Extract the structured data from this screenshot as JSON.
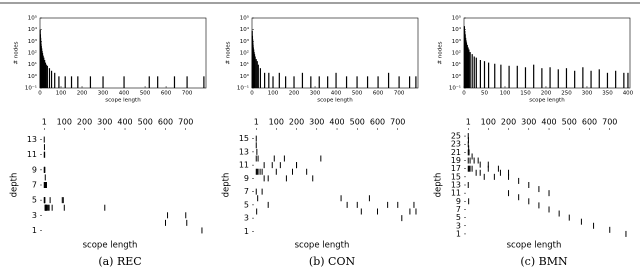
{
  "chart_data": [
    {
      "type": "bar",
      "ylog": true,
      "xlabel": "scope length",
      "ylabel": "# nodes",
      "color": "#000000",
      "x": [
        1,
        2,
        3,
        4,
        5,
        6,
        8,
        10,
        12,
        15,
        18,
        22,
        26,
        30,
        35,
        45,
        55,
        70,
        90,
        120,
        150,
        180,
        240,
        300,
        400,
        520,
        560,
        640,
        700,
        780
      ],
      "values": [
        10000,
        4000,
        2000,
        1000,
        600,
        400,
        250,
        150,
        100,
        60,
        40,
        25,
        15,
        10,
        8,
        5,
        3,
        2,
        1,
        1,
        1,
        1,
        1,
        1,
        1,
        1,
        1,
        1,
        1,
        1
      ],
      "xlim": [
        0,
        790
      ],
      "xticks": [
        0,
        100,
        200,
        300,
        400,
        500,
        600,
        700
      ],
      "ylim": [
        0.1,
        100000
      ],
      "yticks": [
        {
          "value": 0.1,
          "label": "10⁻¹"
        },
        {
          "value": 1,
          "label": "10⁰"
        },
        {
          "value": 10,
          "label": "10¹"
        },
        {
          "value": 100,
          "label": "10²"
        },
        {
          "value": 1000,
          "label": "10³"
        },
        {
          "value": 10000,
          "label": "10⁴"
        },
        {
          "value": 100000,
          "label": "10⁵"
        }
      ]
    },
    {
      "type": "bar",
      "ylog": true,
      "xlabel": "scope length",
      "ylabel": "# nodes",
      "color": "#000000",
      "x": [
        1,
        2,
        3,
        4,
        5,
        6,
        8,
        10,
        12,
        15,
        20,
        25,
        30,
        40,
        60,
        80,
        100,
        130,
        160,
        200,
        240,
        280,
        320,
        360,
        400,
        450,
        500,
        550,
        600,
        650,
        700,
        750,
        780
      ],
      "values": [
        8000,
        3000,
        1500,
        800,
        500,
        300,
        200,
        120,
        80,
        50,
        30,
        20,
        10,
        5,
        2,
        2,
        1,
        2,
        1,
        1,
        2,
        1,
        1,
        1,
        2,
        1,
        1,
        1,
        1,
        2,
        1,
        1,
        1
      ],
      "xlim": [
        0,
        790
      ],
      "xticks": [
        0,
        100,
        200,
        300,
        400,
        500,
        600,
        700
      ],
      "ylim": [
        0.1,
        100000
      ],
      "yticks": [
        {
          "value": 0.1,
          "label": "10⁻¹"
        },
        {
          "value": 1,
          "label": "10⁰"
        },
        {
          "value": 10,
          "label": "10¹"
        },
        {
          "value": 100,
          "label": "10²"
        },
        {
          "value": 1000,
          "label": "10³"
        },
        {
          "value": 10000,
          "label": "10⁴"
        },
        {
          "value": 100000,
          "label": "10⁵"
        }
      ]
    },
    {
      "type": "bar",
      "ylog": true,
      "xlabel": "scope length",
      "ylabel": "# nodes",
      "color": "#000000",
      "x": [
        1,
        2,
        3,
        4,
        5,
        6,
        8,
        10,
        12,
        15,
        20,
        25,
        30,
        40,
        50,
        60,
        75,
        90,
        110,
        130,
        150,
        170,
        190,
        210,
        230,
        250,
        270,
        290,
        310,
        330,
        350,
        370,
        390,
        400
      ],
      "values": [
        20000,
        8000,
        4000,
        2000,
        1200,
        800,
        500,
        300,
        200,
        120,
        80,
        50,
        40,
        25,
        20,
        15,
        12,
        10,
        8,
        8,
        6,
        10,
        5,
        6,
        4,
        5,
        3,
        6,
        3,
        4,
        2,
        3,
        2,
        2
      ],
      "xlim": [
        0,
        405
      ],
      "xticks": [
        0,
        50,
        100,
        150,
        200,
        250,
        300,
        350,
        400
      ],
      "ylim": [
        0.1,
        100000
      ],
      "yticks": [
        {
          "value": 0.1,
          "label": "10⁻¹"
        },
        {
          "value": 1,
          "label": "10⁰"
        },
        {
          "value": 10,
          "label": "10¹"
        },
        {
          "value": 100,
          "label": "10²"
        },
        {
          "value": 1000,
          "label": "10³"
        },
        {
          "value": 10000,
          "label": "10⁴"
        },
        {
          "value": 100000,
          "label": "10⁵"
        }
      ]
    },
    {
      "type": "scatter",
      "xlabel": "scope length",
      "ylabel": "depth",
      "color": "#000000",
      "x": [
        1,
        2,
        3,
        4,
        5,
        6,
        8,
        10,
        12,
        15,
        20,
        25,
        1,
        3,
        5,
        8,
        12,
        1,
        2,
        4,
        6,
        1,
        3,
        1,
        2,
        90,
        100,
        95,
        300,
        610,
        600,
        700,
        705,
        780,
        30,
        40
      ],
      "y": [
        5,
        5,
        5,
        5,
        4,
        4,
        4,
        4,
        4,
        4,
        4,
        4,
        7,
        7,
        7,
        7,
        7,
        9,
        9,
        9,
        8,
        11,
        11,
        13,
        12,
        5,
        4,
        5,
        4,
        3,
        2,
        3,
        2,
        1,
        5,
        4
      ],
      "xlim": [
        -20,
        800
      ],
      "xticks": [
        1,
        100,
        200,
        300,
        400,
        500,
        600,
        700
      ],
      "ylim": [
        0,
        14
      ],
      "yticks": [
        1,
        3,
        5,
        7,
        9,
        11,
        13
      ]
    },
    {
      "type": "scatter",
      "xlabel": "scope length",
      "ylabel": "depth",
      "color": "#000000",
      "x": [
        1,
        5,
        10,
        20,
        30,
        40,
        60,
        80,
        100,
        120,
        150,
        180,
        200,
        250,
        280,
        320,
        1,
        10,
        40,
        90,
        140,
        200,
        1,
        8,
        30,
        60,
        1,
        4,
        1,
        3,
        500,
        520,
        560,
        600,
        650,
        700,
        720,
        760,
        780,
        790,
        420,
        450
      ],
      "y": [
        10,
        10,
        10,
        10,
        10,
        9,
        9,
        11,
        10,
        11,
        9,
        10,
        11,
        10,
        9,
        12,
        12,
        12,
        11,
        12,
        12,
        11,
        7,
        6,
        7,
        5,
        14,
        13,
        15,
        4,
        5,
        4,
        6,
        4,
        5,
        5,
        3,
        4,
        5,
        4,
        6,
        5
      ],
      "xlim": [
        -20,
        800
      ],
      "xticks": [
        1,
        100,
        200,
        300,
        400,
        500,
        600,
        700
      ],
      "ylim": [
        0,
        16
      ],
      "yticks": [
        1,
        3,
        5,
        7,
        9,
        11,
        13,
        15
      ]
    },
    {
      "type": "scatter",
      "xlabel": "scope length",
      "ylabel": "depth",
      "color": "#000000",
      "x": [
        1,
        5,
        10,
        20,
        40,
        60,
        80,
        100,
        130,
        160,
        200,
        250,
        300,
        350,
        400,
        1,
        10,
        30,
        60,
        100,
        150,
        200,
        1,
        5,
        20,
        50,
        1,
        3,
        1,
        2,
        200,
        250,
        300,
        350,
        400,
        450,
        500,
        560,
        620,
        700,
        780,
        1,
        3
      ],
      "y": [
        17,
        17,
        17,
        17,
        16,
        16,
        15,
        17,
        15,
        16,
        15,
        14,
        13,
        12,
        11,
        19,
        19,
        19,
        18,
        18,
        17,
        16,
        21,
        21,
        20,
        19,
        23,
        22,
        25,
        24,
        11,
        10,
        9,
        8,
        7,
        6,
        5,
        4,
        3,
        2,
        1,
        13,
        9
      ],
      "xlim": [
        -20,
        800
      ],
      "xticks": [
        1,
        100,
        200,
        300,
        400,
        500,
        600,
        700
      ],
      "ylim": [
        0,
        26
      ],
      "yticks": [
        1,
        3,
        5,
        7,
        9,
        11,
        13,
        15,
        17,
        19,
        21,
        23,
        25
      ]
    }
  ],
  "captions": [
    "(a) REC",
    "(b) CON",
    "(c) BMN"
  ]
}
